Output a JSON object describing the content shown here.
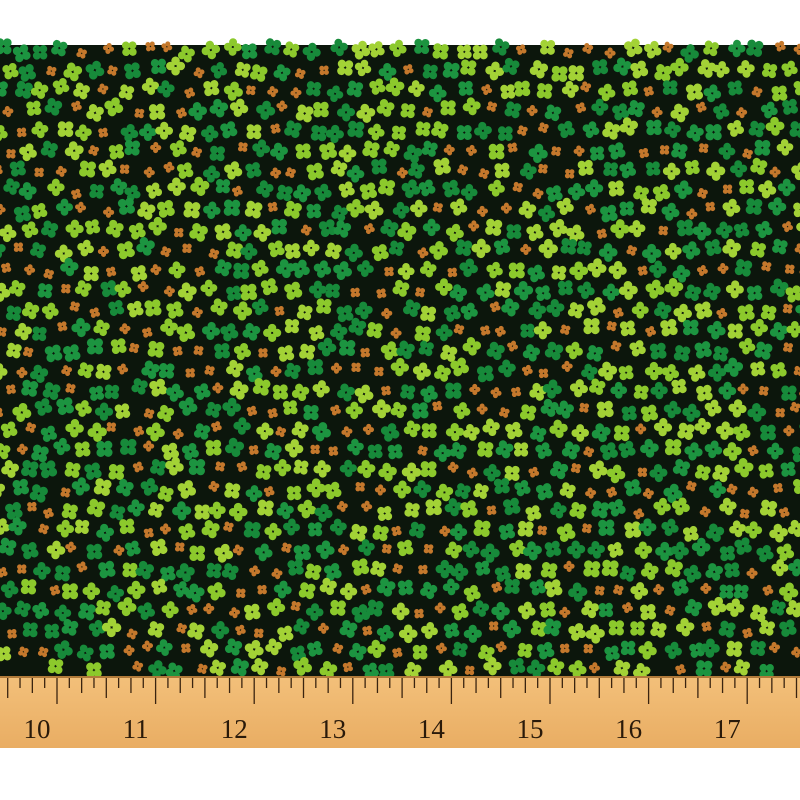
{
  "ruler": {
    "labels": [
      "10",
      "11",
      "12",
      "13",
      "14",
      "15",
      "16",
      "17"
    ]
  }
}
